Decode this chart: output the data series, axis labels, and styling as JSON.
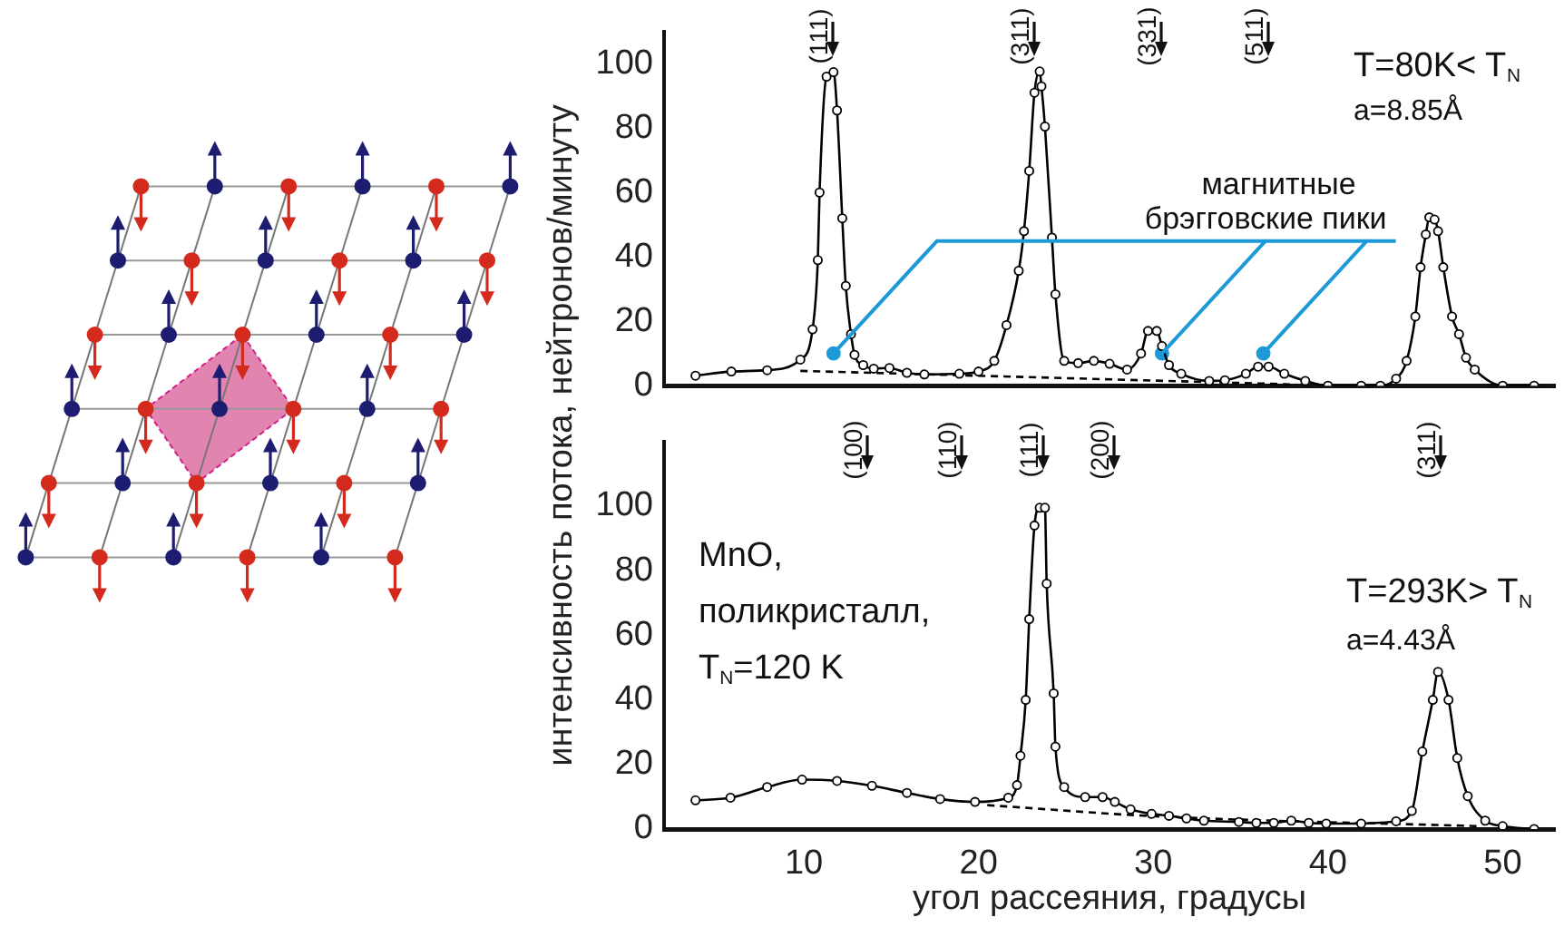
{
  "chart_data": [
    {
      "type": "line",
      "ylabel": "интенсивность потока, нейтронов/минуту",
      "xlim": [
        2,
        53
      ],
      "xticks": [
        10,
        20,
        30,
        40,
        50
      ],
      "ylim": [
        0,
        110
      ],
      "yticks": [
        0,
        20,
        40,
        60,
        80,
        100
      ],
      "tick_labels": "y",
      "grid": false,
      "legend": false,
      "marker": "circle",
      "line_style": "solid",
      "annotations": [
        "T=80K< T$_{N}$",
        "a=8.85Å",
        "(111)",
        "(311)",
        "(331)",
        "(511)"
      ],
      "series": [
        {
          "type": "line",
          "color": "#000000",
          "x": [
            3.8,
            5.85,
            7.9,
            9.8,
            10.5,
            10.8,
            10.9,
            11.3,
            11.7,
            11.9,
            12.2,
            12.4,
            12.7,
            12.9,
            13.4,
            14.0,
            14.9,
            15.9,
            16.9,
            18.9,
            20.0,
            20.9,
            21.6,
            22.3,
            22.6,
            22.9,
            23.2,
            23.5,
            23.6,
            23.8,
            24.2,
            24.4,
            24.9,
            25.7,
            26.6,
            27.5,
            28.5,
            29.3,
            29.7,
            30.2,
            30.5,
            30.9,
            31.6,
            33.2,
            34.1,
            35.3,
            36.0,
            36.6,
            37.5,
            38.7,
            40.0,
            41.9,
            43.0,
            43.9,
            44.5,
            45.0,
            45.3,
            45.6,
            45.8,
            46.1,
            46.3,
            46.6,
            47.1,
            47.5,
            47.9,
            48.4,
            50.0,
            51.8
          ],
          "values": [
            3.1,
            4.4,
            4.8,
            8.1,
            17.5,
            39,
            60,
            96,
            97.4,
            85.5,
            52,
            31,
            16,
            9.6,
            6.4,
            5.3,
            5.5,
            4,
            3.5,
            3.7,
            4.4,
            7.7,
            18.8,
            35.7,
            48,
            66.7,
            91,
            97.6,
            93,
            80.5,
            46,
            28.4,
            7.7,
            7,
            7.7,
            6.8,
            5,
            10,
            17,
            17,
            12.3,
            6.4,
            3.7,
            1.5,
            1.7,
            3.7,
            5.9,
            5.9,
            3.7,
            1.5,
            0,
            0,
            0,
            2.2,
            7.7,
            21.5,
            36.8,
            47,
            52.3,
            51.6,
            48,
            36.8,
            21.5,
            16,
            8.7,
            5,
            0,
            0
          ]
        },
        {
          "type": "line",
          "color": "#000000",
          "line_style": "dashed",
          "marker": "none",
          "x": [
            9.8,
            38.0
          ],
          "values": [
            4.6,
            0.4
          ]
        },
        {
          "type": "scatter",
          "name": "магнитные брэгговские пики",
          "color": "#1b9ad7",
          "x": [
            11.7,
            30.5,
            36.3
          ],
          "values": [
            10,
            10,
            10
          ]
        }
      ]
    },
    {
      "type": "line",
      "xlabel": "угол рассеяния, градусы",
      "xlim": [
        2,
        53
      ],
      "xticks": [
        10,
        20,
        30,
        40,
        50
      ],
      "ylim": [
        0,
        120
      ],
      "yticks": [
        0,
        20,
        40,
        60,
        80,
        100
      ],
      "grid": false,
      "legend": false,
      "marker": "circle",
      "line_style": "solid",
      "annotations": [
        "MnO,",
        "поликристалл,",
        "T$_{N}$=120 K",
        "T=293K> T$_{N}$",
        "a=4.43Å",
        "(100)",
        "(110)",
        "(111)",
        "(200)",
        "(311)"
      ],
      "series": [
        {
          "type": "line",
          "color": "#000000",
          "x": [
            3.8,
            5.8,
            7.9,
            9.9,
            11.9,
            13.9,
            15.9,
            17.8,
            19.8,
            21.7,
            22.2,
            22.4,
            22.7,
            22.9,
            23.2,
            23.5,
            23.8,
            23.9,
            24.3,
            24.4,
            24.9,
            26.1,
            27.1,
            27.8,
            28.7,
            29.9,
            30.9,
            31.9,
            32.9,
            34.9,
            35.9,
            36.9,
            37.9,
            38.9,
            39.9,
            41.9,
            43.9,
            44.8,
            45.4,
            46.0,
            46.3,
            46.9,
            47.4,
            48.0,
            49.0,
            50.0,
            51.8
          ],
          "values": [
            8.9,
            9.7,
            13,
            15.3,
            14.9,
            13.4,
            11.2,
            9.3,
            8.4,
            9.7,
            13.6,
            22.7,
            40,
            65,
            94,
            99.5,
            99.5,
            76,
            42,
            25.5,
            13,
            9.9,
            9.9,
            8.4,
            6.1,
            4.7,
            4.1,
            3.3,
            2.6,
            2.2,
            1.9,
            1.9,
            2.6,
            1.9,
            1.7,
            1.7,
            2.4,
            5.6,
            24,
            40,
            48.7,
            40,
            22,
            10.2,
            2.6,
            0.9,
            0
          ]
        },
        {
          "type": "line",
          "color": "#000000",
          "line_style": "dashed",
          "marker": "none",
          "x": [
            20.5,
            30.0,
            48.5
          ],
          "values": [
            7.4,
            4.0,
            0.9
          ]
        }
      ]
    }
  ]
}
